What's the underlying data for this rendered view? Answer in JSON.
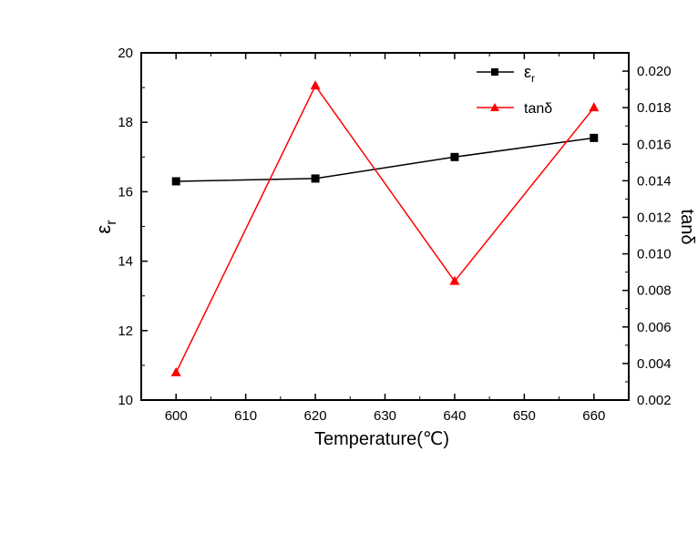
{
  "chart_data": {
    "type": "line",
    "x": [
      600,
      620,
      640,
      660
    ],
    "xlabel": "Temperature(℃)",
    "xlim": [
      595,
      665
    ],
    "xticks": [
      "600",
      "610",
      "620",
      "630",
      "640",
      "650",
      "660"
    ],
    "y_left": {
      "label_main": "ε",
      "label_sub": "r",
      "lim": [
        10,
        20
      ],
      "ticks": [
        "10",
        "12",
        "14",
        "16",
        "18",
        "20"
      ]
    },
    "y_right": {
      "label": "tanδ",
      "lim": [
        0.002,
        0.021
      ],
      "ticks": [
        "0.002",
        "0.004",
        "0.006",
        "0.008",
        "0.010",
        "0.012",
        "0.014",
        "0.016",
        "0.018",
        "0.020"
      ]
    },
    "series": [
      {
        "name": "ε",
        "name_sub": "r",
        "axis": "left",
        "color": "#000000",
        "marker": "square",
        "values": [
          16.3,
          16.38,
          17.0,
          17.55
        ]
      },
      {
        "name": "tanδ",
        "axis": "right",
        "color": "#ff0000",
        "marker": "triangle",
        "values": [
          0.0035,
          0.0192,
          0.0085,
          0.018
        ]
      }
    ]
  }
}
